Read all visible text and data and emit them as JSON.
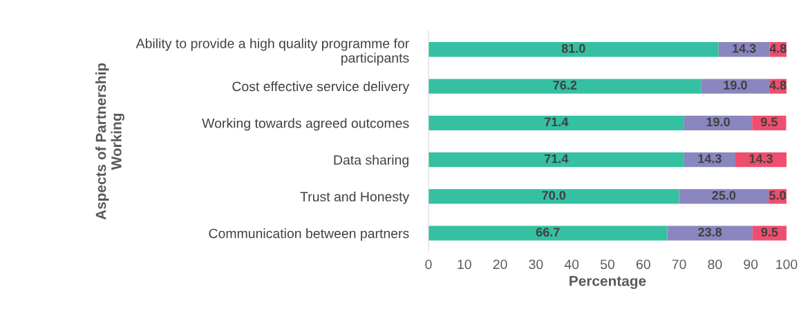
{
  "chart_data": {
    "type": "bar",
    "orientation": "horizontal",
    "stacked": true,
    "xlabel": "Percentage",
    "ylabel": "Aspects of Partnership\nWorking",
    "categories": [
      "Ability to provide a high quality programme for\nparticipants",
      "Cost effective service delivery",
      "Working towards agreed outcomes",
      "Data sharing",
      "Trust and Honesty",
      "Communication between partners"
    ],
    "series": [
      {
        "color": "#35c0a2",
        "values": [
          81.0,
          76.2,
          71.4,
          71.4,
          70.0,
          66.7
        ],
        "value_labels": [
          "81.0",
          "76.2",
          "71.4",
          "71.4",
          "70.0",
          "66.7"
        ]
      },
      {
        "color": "#8a86c0",
        "values": [
          14.3,
          19.0,
          19.0,
          14.3,
          25.0,
          23.8
        ],
        "value_labels": [
          "14.3",
          "19.0",
          "19.0",
          "14.3",
          "25.0",
          "23.8"
        ]
      },
      {
        "color": "#f04e6e",
        "values": [
          4.8,
          4.8,
          9.5,
          14.3,
          5.0,
          9.5
        ],
        "value_labels": [
          "4.8",
          "4.8",
          "9.5",
          "14.3",
          "5.0",
          "9.5"
        ]
      }
    ],
    "xlim": [
      0,
      100
    ],
    "xticks": [
      0,
      10,
      20,
      30,
      40,
      50,
      60,
      70,
      80,
      90,
      100
    ],
    "grid": false,
    "legend": false
  }
}
